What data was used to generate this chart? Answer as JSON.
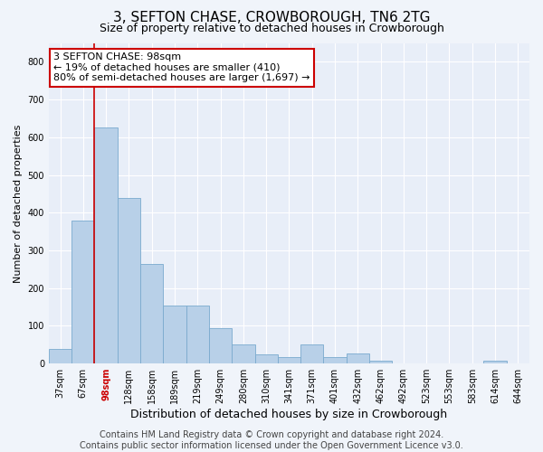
{
  "title": "3, SEFTON CHASE, CROWBOROUGH, TN6 2TG",
  "subtitle": "Size of property relative to detached houses in Crowborough",
  "xlabel": "Distribution of detached houses by size in Crowborough",
  "ylabel": "Number of detached properties",
  "categories": [
    "37sqm",
    "67sqm",
    "98sqm",
    "128sqm",
    "158sqm",
    "189sqm",
    "219sqm",
    "249sqm",
    "280sqm",
    "310sqm",
    "341sqm",
    "371sqm",
    "401sqm",
    "432sqm",
    "462sqm",
    "492sqm",
    "523sqm",
    "553sqm",
    "583sqm",
    "614sqm",
    "644sqm"
  ],
  "values": [
    40,
    380,
    625,
    438,
    265,
    155,
    155,
    95,
    50,
    25,
    18,
    50,
    18,
    28,
    8,
    0,
    0,
    0,
    0,
    8,
    0
  ],
  "bar_color": "#b8d0e8",
  "bar_edge_color": "#7aaace",
  "highlight_index": 2,
  "highlight_color": "#cc0000",
  "vline_color": "#cc0000",
  "annotation_text": "3 SEFTON CHASE: 98sqm\n← 19% of detached houses are smaller (410)\n80% of semi-detached houses are larger (1,697) →",
  "annotation_box_color": "#ffffff",
  "annotation_box_edge_color": "#cc0000",
  "ylim": [
    0,
    850
  ],
  "yticks": [
    0,
    100,
    200,
    300,
    400,
    500,
    600,
    700,
    800
  ],
  "fig_bg_color": "#f0f4fa",
  "plot_bg_color": "#e8eef8",
  "grid_color": "#ffffff",
  "footer_text": "Contains HM Land Registry data © Crown copyright and database right 2024.\nContains public sector information licensed under the Open Government Licence v3.0.",
  "title_fontsize": 11,
  "subtitle_fontsize": 9,
  "xlabel_fontsize": 9,
  "ylabel_fontsize": 8,
  "tick_fontsize": 7,
  "annotation_fontsize": 8,
  "footer_fontsize": 7
}
